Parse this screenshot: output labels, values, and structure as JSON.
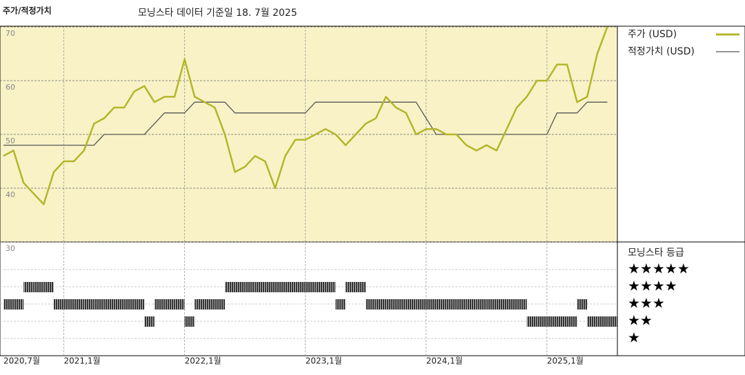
{
  "chart_data": {
    "type": "line",
    "title": "주가/적정가치",
    "subtitle": "모닝스타 데이터 기준일 18. 7월 2025",
    "x": [
      "2020-07",
      "2020-08",
      "2020-09",
      "2020-10",
      "2020-11",
      "2020-12",
      "2021-01",
      "2021-02",
      "2021-03",
      "2021-04",
      "2021-05",
      "2021-06",
      "2021-07",
      "2021-08",
      "2021-09",
      "2021-10",
      "2021-11",
      "2021-12",
      "2022-01",
      "2022-02",
      "2022-03",
      "2022-04",
      "2022-05",
      "2022-06",
      "2022-07",
      "2022-08",
      "2022-09",
      "2022-10",
      "2022-11",
      "2022-12",
      "2023-01",
      "2023-02",
      "2023-03",
      "2023-04",
      "2023-05",
      "2023-06",
      "2023-07",
      "2023-08",
      "2023-09",
      "2023-10",
      "2023-11",
      "2023-12",
      "2024-01",
      "2024-02",
      "2024-03",
      "2024-04",
      "2024-05",
      "2024-06",
      "2024-07",
      "2024-08",
      "2024-09",
      "2024-10",
      "2024-11",
      "2024-12",
      "2025-01",
      "2025-02",
      "2025-03",
      "2025-04",
      "2025-05",
      "2025-06",
      "2025-07"
    ],
    "xlim": [
      "2020-07",
      "2025-08"
    ],
    "xticks": [
      {
        "value": "2020-07",
        "label": "2020,7월"
      },
      {
        "value": "2021-01",
        "label": "2021,1월"
      },
      {
        "value": "2022-01",
        "label": "2022,1월"
      },
      {
        "value": "2023-01",
        "label": "2023,1월"
      },
      {
        "value": "2024-01",
        "label": "2024,1월"
      },
      {
        "value": "2025-01",
        "label": "2025,1월"
      }
    ],
    "ylim": [
      30,
      70
    ],
    "yticks": [
      30,
      40,
      50,
      60,
      70
    ],
    "grid": true,
    "series": [
      {
        "name": "주가 (USD)",
        "color": "#b3b52a",
        "values": [
          46,
          47,
          41,
          39,
          37,
          43,
          45,
          45,
          47,
          52,
          53,
          55,
          55,
          58,
          59,
          56,
          57,
          57,
          64,
          57,
          56,
          55,
          50,
          43,
          44,
          46,
          45,
          40,
          46,
          49,
          49,
          50,
          51,
          50,
          48,
          50,
          52,
          53,
          57,
          55,
          54,
          50,
          51,
          51,
          50,
          50,
          48,
          47,
          48,
          47,
          51,
          55,
          57,
          60,
          60,
          63,
          63,
          56,
          57,
          65,
          70
        ]
      },
      {
        "name": "적정가치 (USD)",
        "color": "#555555",
        "values": [
          48,
          48,
          48,
          48,
          48,
          48,
          48,
          48,
          48,
          48,
          50,
          50,
          50,
          50,
          50,
          52,
          54,
          54,
          54,
          56,
          56,
          56,
          56,
          54,
          54,
          54,
          54,
          54,
          54,
          54,
          54,
          56,
          56,
          56,
          56,
          56,
          56,
          56,
          56,
          56,
          56,
          56,
          53,
          50,
          50,
          50,
          50,
          50,
          50,
          50,
          50,
          50,
          50,
          50,
          50,
          54,
          54,
          54,
          56,
          56,
          56
        ]
      }
    ],
    "rating": {
      "title": "모닝스타 등급",
      "labels": [
        "★★★★★",
        "★★★★",
        "★★★",
        "★★",
        "★"
      ],
      "values": [
        3,
        3,
        4,
        4,
        4,
        3,
        3,
        3,
        3,
        3,
        3,
        3,
        3,
        3,
        2,
        3,
        3,
        3,
        2,
        3,
        3,
        3,
        4,
        4,
        4,
        4,
        4,
        4,
        4,
        4,
        4,
        4,
        4,
        3,
        4,
        4,
        3,
        3,
        3,
        3,
        3,
        3,
        3,
        3,
        3,
        3,
        3,
        3,
        3,
        3,
        3,
        3,
        2,
        2,
        2,
        2,
        2,
        3,
        2,
        2,
        2
      ]
    }
  }
}
